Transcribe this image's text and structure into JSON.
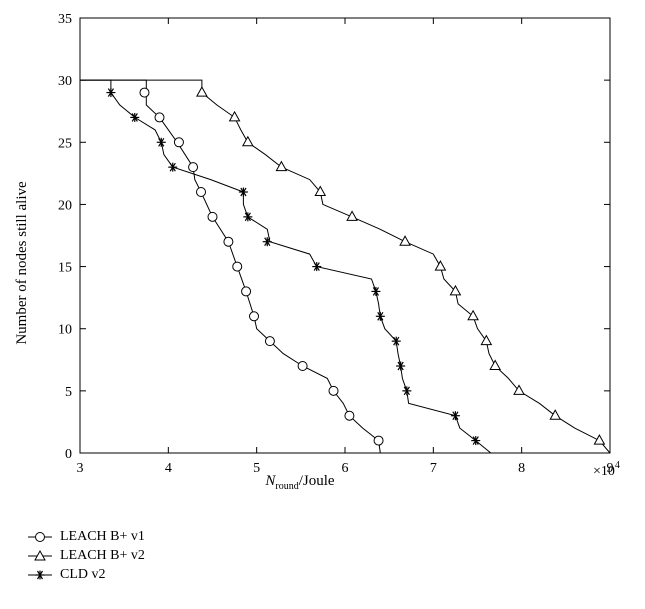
{
  "chart_data": {
    "type": "line",
    "title": "",
    "xlabel_main": "N",
    "xlabel_sub": "round",
    "xlabel_unit": "/Joule",
    "ylabel": "Number of nodes still alive",
    "x_multiplier": "×10",
    "x_multiplier_exp": "4",
    "xlim": [
      3,
      9
    ],
    "ylim": [
      0,
      35
    ],
    "xticks": [
      "3",
      "4",
      "5",
      "6",
      "7",
      "8",
      "9"
    ],
    "yticks": [
      "0",
      "5",
      "10",
      "15",
      "20",
      "25",
      "30",
      "35"
    ],
    "grid": false,
    "legend_position": "bottom-left, below plot",
    "series": [
      {
        "name": "LEACH B+ v1",
        "marker": "circle",
        "line": [
          [
            3,
            30
          ],
          [
            3.75,
            30
          ],
          [
            3.75,
            28
          ],
          [
            3.9,
            27
          ],
          [
            4.1,
            25
          ],
          [
            4.28,
            23
          ],
          [
            4.3,
            22
          ],
          [
            4.37,
            21
          ],
          [
            4.5,
            19
          ],
          [
            4.68,
            17
          ],
          [
            4.78,
            15
          ],
          [
            4.88,
            13
          ],
          [
            4.97,
            11
          ],
          [
            5,
            10
          ],
          [
            5.15,
            9
          ],
          [
            5.3,
            8
          ],
          [
            5.52,
            7
          ],
          [
            5.8,
            6
          ],
          [
            5.87,
            5
          ],
          [
            5.98,
            4
          ],
          [
            6.05,
            3
          ],
          [
            6.2,
            2
          ],
          [
            6.38,
            1
          ],
          [
            6.4,
            0
          ]
        ],
        "markers": [
          [
            3.73,
            29
          ],
          [
            3.9,
            27
          ],
          [
            4.12,
            25
          ],
          [
            4.28,
            23
          ],
          [
            4.37,
            21
          ],
          [
            4.5,
            19
          ],
          [
            4.68,
            17
          ],
          [
            4.78,
            15
          ],
          [
            4.88,
            13
          ],
          [
            4.97,
            11
          ],
          [
            5.15,
            9
          ],
          [
            5.52,
            7
          ],
          [
            5.87,
            5
          ],
          [
            6.05,
            3
          ],
          [
            6.38,
            1
          ]
        ]
      },
      {
        "name": "LEACH B+ v2",
        "marker": "triangle",
        "line": [
          [
            3,
            30
          ],
          [
            4.38,
            30
          ],
          [
            4.38,
            29
          ],
          [
            4.55,
            28
          ],
          [
            4.75,
            27
          ],
          [
            4.82,
            26
          ],
          [
            4.9,
            25
          ],
          [
            5.1,
            24
          ],
          [
            5.28,
            23
          ],
          [
            5.6,
            22
          ],
          [
            5.72,
            21
          ],
          [
            5.75,
            20
          ],
          [
            6.08,
            19
          ],
          [
            6.4,
            18
          ],
          [
            6.68,
            17
          ],
          [
            7.0,
            16
          ],
          [
            7.08,
            15
          ],
          [
            7.12,
            14
          ],
          [
            7.25,
            13
          ],
          [
            7.28,
            12
          ],
          [
            7.45,
            11
          ],
          [
            7.5,
            10
          ],
          [
            7.6,
            9
          ],
          [
            7.63,
            8
          ],
          [
            7.7,
            7
          ],
          [
            7.85,
            6
          ],
          [
            7.97,
            5
          ],
          [
            8.2,
            4
          ],
          [
            8.38,
            3
          ],
          [
            8.6,
            2
          ],
          [
            8.88,
            1
          ],
          [
            9,
            0
          ]
        ],
        "markers": [
          [
            4.38,
            29
          ],
          [
            4.75,
            27
          ],
          [
            4.9,
            25
          ],
          [
            5.28,
            23
          ],
          [
            5.72,
            21
          ],
          [
            6.08,
            19
          ],
          [
            6.68,
            17
          ],
          [
            7.08,
            15
          ],
          [
            7.25,
            13
          ],
          [
            7.45,
            11
          ],
          [
            7.6,
            9
          ],
          [
            7.7,
            7
          ],
          [
            7.97,
            5
          ],
          [
            8.38,
            3
          ],
          [
            8.88,
            1
          ]
        ]
      },
      {
        "name": "CLD v2",
        "marker": "star",
        "line": [
          [
            3,
            30
          ],
          [
            3.35,
            30
          ],
          [
            3.35,
            29
          ],
          [
            3.45,
            28
          ],
          [
            3.62,
            27
          ],
          [
            3.85,
            26
          ],
          [
            3.92,
            25
          ],
          [
            3.95,
            24
          ],
          [
            4.05,
            23
          ],
          [
            4.48,
            22
          ],
          [
            4.85,
            21
          ],
          [
            4.85,
            20
          ],
          [
            4.9,
            19
          ],
          [
            5.12,
            18
          ],
          [
            5.15,
            17
          ],
          [
            5.6,
            16
          ],
          [
            5.68,
            15
          ],
          [
            6.3,
            14
          ],
          [
            6.35,
            13
          ],
          [
            6.38,
            12
          ],
          [
            6.4,
            11
          ],
          [
            6.45,
            10
          ],
          [
            6.58,
            9
          ],
          [
            6.6,
            8
          ],
          [
            6.63,
            7
          ],
          [
            6.65,
            6
          ],
          [
            6.7,
            5
          ],
          [
            6.72,
            4
          ],
          [
            7.25,
            3
          ],
          [
            7.3,
            2
          ],
          [
            7.48,
            1
          ],
          [
            7.65,
            0
          ]
        ],
        "markers": [
          [
            3.35,
            29
          ],
          [
            3.62,
            27
          ],
          [
            3.92,
            25
          ],
          [
            4.05,
            23
          ],
          [
            4.85,
            21
          ],
          [
            4.9,
            19
          ],
          [
            5.12,
            17
          ],
          [
            5.68,
            15
          ],
          [
            6.35,
            13
          ],
          [
            6.4,
            11
          ],
          [
            6.58,
            9
          ],
          [
            6.63,
            7
          ],
          [
            6.7,
            5
          ],
          [
            7.25,
            3
          ],
          [
            7.48,
            1
          ]
        ]
      }
    ]
  }
}
